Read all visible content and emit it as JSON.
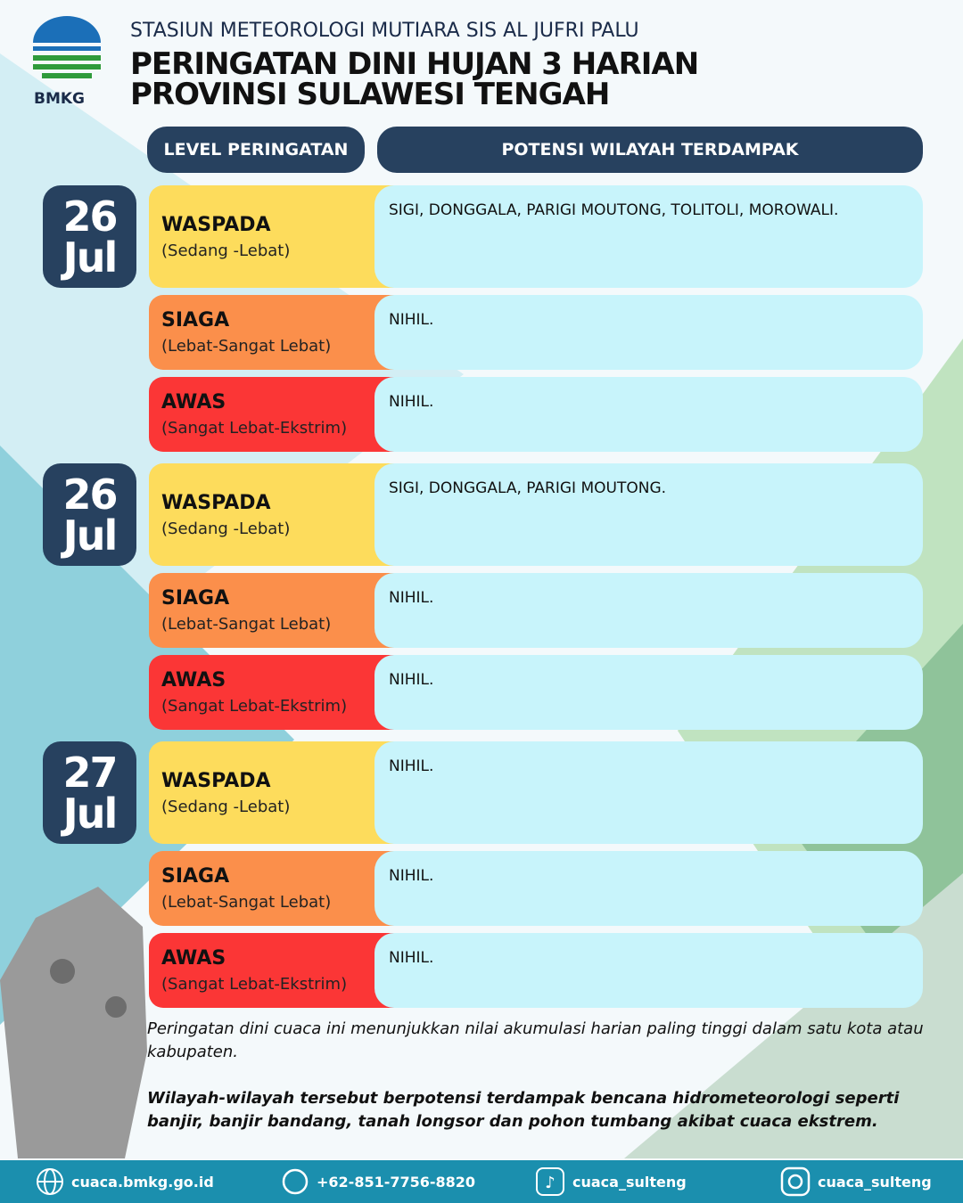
{
  "header": {
    "logo_text": "BMKG",
    "organization": "STASIUN METEOROLOGI MUTIARA SIS AL JUFRI PALU",
    "title_line1": "PERINGATAN DINI HUJAN 3 HARIAN",
    "title_line2": "PROVINSI SULAWESI TENGAH"
  },
  "columns": [
    "LEVEL PERINGATAN",
    "POTENSI WILAYAH TERDAMPAK"
  ],
  "days": [
    {
      "day": "26",
      "month": "Jul",
      "levels": [
        {
          "name": "WASPADA",
          "desc": "(Sedang -Lebat)",
          "areas": "SIGI, DONGGALA, PARIGI MOUTONG,  TOLITOLI, MOROWALI."
        },
        {
          "name": "SIAGA",
          "desc": "(Lebat-Sangat Lebat)",
          "areas": "NIHIL."
        },
        {
          "name": "AWAS",
          "desc": "(Sangat Lebat-Ekstrim)",
          "areas": "NIHIL."
        }
      ]
    },
    {
      "day": "26",
      "month": "Jul",
      "levels": [
        {
          "name": "WASPADA",
          "desc": "(Sedang -Lebat)",
          "areas": "SIGI, DONGGALA, PARIGI MOUTONG."
        },
        {
          "name": "SIAGA",
          "desc": "(Lebat-Sangat Lebat)",
          "areas": "NIHIL."
        },
        {
          "name": "AWAS",
          "desc": "(Sangat Lebat-Ekstrim)",
          "areas": "NIHIL."
        }
      ]
    },
    {
      "day": "27",
      "month": "Jul",
      "levels": [
        {
          "name": "WASPADA",
          "desc": "(Sedang -Lebat)",
          "areas": "NIHIL."
        },
        {
          "name": "SIAGA",
          "desc": "(Lebat-Sangat Lebat)",
          "areas": "NIHIL."
        },
        {
          "name": "AWAS",
          "desc": "(Sangat Lebat-Ekstrim)",
          "areas": "NIHIL."
        }
      ]
    }
  ],
  "notes": [
    "Peringatan dini cuaca ini menunjukkan nilai akumulasi harian paling tinggi dalam satu kota atau kabupaten.",
    "Wilayah-wilayah tersebut berpotensi terdampak bencana hidrometeorologi seperti banjir, banjir bandang, tanah longsor dan pohon tumbang akibat cuaca ekstrem."
  ],
  "footer": {
    "website": "cuaca.bmkg.go.id",
    "phone": "+62-851-7756-8820",
    "tiktok": "cuaca_sulteng",
    "instagram": "cuaca_sulteng"
  }
}
